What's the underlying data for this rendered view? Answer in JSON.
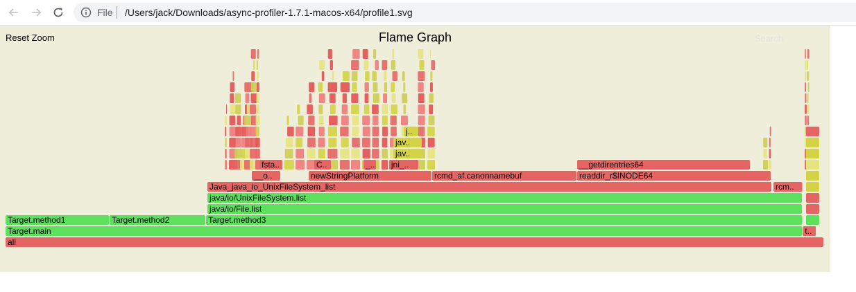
{
  "browser": {
    "back_icon": "arrow-left-icon",
    "forward_icon": "arrow-right-icon",
    "reload_icon": "reload-icon",
    "info_icon": "info-icon",
    "file_label": "File",
    "url": "/Users/jack/Downloads/async-profiler-1.7.1-macos-x64/profile1.svg"
  },
  "page": {
    "reset_zoom": "Reset Zoom",
    "title": "Flame Graph",
    "search": "Search"
  },
  "colors": {
    "background": "#efeedb",
    "java_frame": "#5de05d",
    "native_frame": "#e56565",
    "kernel_frame": "#d3d345"
  },
  "chart_data": {
    "type": "flame",
    "frames": [
      {
        "name": "all",
        "label": "all",
        "depth": 0,
        "start": 0.0,
        "width": 1.0,
        "kind": "native"
      },
      {
        "name": "Target.main",
        "label": "Target.main",
        "depth": 1,
        "start": 0.0,
        "width": 0.974,
        "kind": "java"
      },
      {
        "name": "t..",
        "label": "t..",
        "depth": 1,
        "start": 0.974,
        "width": 0.0169,
        "kind": "native"
      },
      {
        "name": "Target.method1",
        "label": "Target.method1",
        "depth": 2,
        "start": 0.0,
        "width": 0.127,
        "kind": "java"
      },
      {
        "name": "Target.method2",
        "label": "Target.method2",
        "depth": 2,
        "start": 0.127,
        "width": 0.118,
        "kind": "java"
      },
      {
        "name": "Target.method3",
        "label": "Target.method3",
        "depth": 2,
        "start": 0.245,
        "width": 0.729,
        "kind": "java"
      },
      {
        "name": "java/io/File.list",
        "label": "java/io/File.list",
        "depth": 3,
        "start": 0.2466,
        "width": 0.7271,
        "kind": "java"
      },
      {
        "name": "java/io/UnixFileSystem.list",
        "label": "java/io/UnixFileSystem.list",
        "depth": 4,
        "start": 0.2466,
        "width": 0.7271,
        "kind": "java"
      },
      {
        "name": "Java_java_io_UnixFileSystem_list",
        "label": "Java_java_io_UnixFileSystem_list",
        "depth": 5,
        "start": 0.2466,
        "width": 0.6898,
        "kind": "native"
      },
      {
        "name": "rcm..",
        "label": "rcm..",
        "depth": 5,
        "start": 0.9381,
        "width": 0.036,
        "kind": "native"
      },
      {
        "name": "__o..",
        "label": "__o..",
        "depth": 6,
        "start": 0.3008,
        "width": 0.0356,
        "kind": "native"
      },
      {
        "name": "newStringPlatform",
        "label": "newStringPlatform",
        "depth": 6,
        "start": 0.3703,
        "width": 0.1508,
        "kind": "native"
      },
      {
        "name": "rcmd_af.canonnamebuf",
        "label": "rcmd_af.canonnamebuf",
        "depth": 6,
        "start": 0.5212,
        "width": 0.1771,
        "kind": "native"
      },
      {
        "name": "readdir_r$INODE64",
        "label": "readdir_r$INODE64",
        "depth": 6,
        "start": 0.6983,
        "width": 0.2373,
        "kind": "native"
      },
      {
        "name": "fsta..",
        "label": "fsta..",
        "depth": 7,
        "start": 0.3102,
        "width": 0.0288,
        "kind": "native"
      },
      {
        "name": "C..",
        "label": "C..",
        "depth": 7,
        "start": 0.3771,
        "width": 0.0212,
        "kind": "native"
      },
      {
        "name": "_..",
        "label": "_..",
        "depth": 7,
        "start": 0.4373,
        "width": 0.0161,
        "kind": "native"
      },
      {
        "name": "jni_..",
        "label": "jni_..",
        "depth": 7,
        "start": 0.4686,
        "width": 0.0364,
        "kind": "native"
      },
      {
        "name": "__getdirentries64",
        "label": "__getdirentries64",
        "depth": 7,
        "start": 0.6983,
        "width": 0.2119,
        "kind": "native"
      },
      {
        "name": "jav..",
        "label": "jav..",
        "depth": 8,
        "start": 0.4737,
        "width": 0.0356,
        "kind": "kernel"
      },
      {
        "name": "jav..",
        "label": "jav..",
        "depth": 9,
        "start": 0.4737,
        "width": 0.0356,
        "kind": "kernel"
      },
      {
        "name": "j..",
        "label": "j..",
        "depth": 10,
        "start": 0.4864,
        "width": 0.0186,
        "kind": "kernel"
      }
    ]
  }
}
